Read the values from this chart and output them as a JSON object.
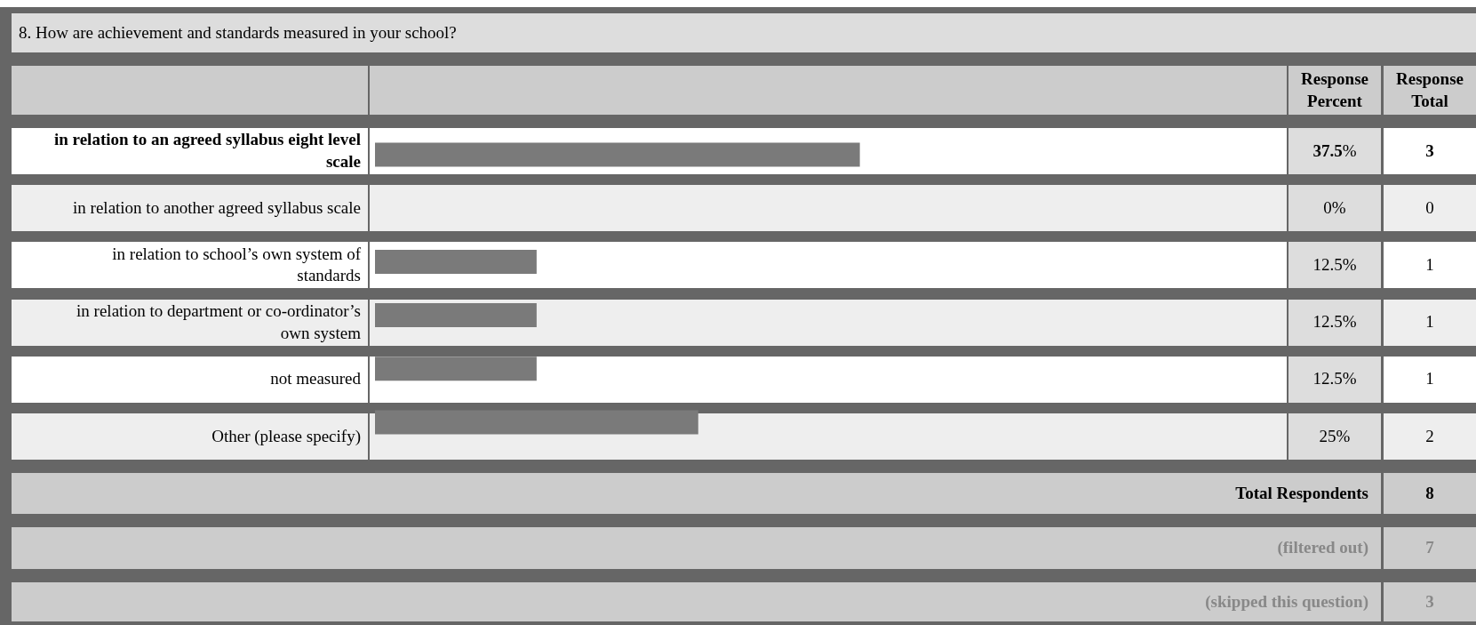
{
  "chart_data": {
    "type": "bar",
    "orientation": "horizontal",
    "title": "8. How are achievement and standards measured in your school?",
    "categories": [
      "in relation to an agreed syllabus eight level scale",
      "in relation to another agreed syllabus scale",
      "in relation to school’s own system of standards",
      "in relation to department or co-ordinator’s own system",
      "not measured",
      "Other (please specify)"
    ],
    "values": [
      37.5,
      0,
      12.5,
      12.5,
      12.5,
      25
    ],
    "value_labels": [
      "37.5%",
      "0%",
      "12.5%",
      "12.5%",
      "12.5%",
      "25%"
    ],
    "color": "#7a7a7a",
    "annotations": [
      "Response Percent",
      "Response Total",
      "3",
      "0",
      "1",
      "1",
      "1",
      "2",
      "Total Respondents",
      "8",
      "(filtered out)",
      "7",
      "(skipped this question)",
      "3"
    ]
  }
}
